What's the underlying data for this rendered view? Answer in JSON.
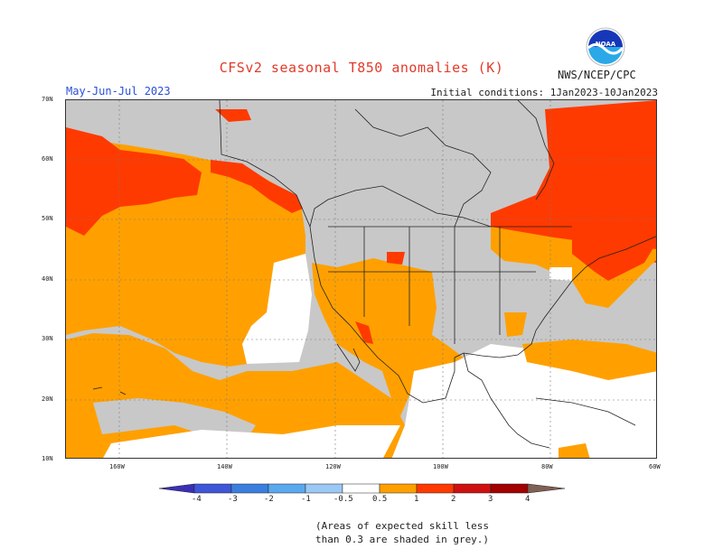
{
  "title": "CFSv2 seasonal T850 anomalies (K)",
  "season": "May-Jun-Jul 2023",
  "initial_conditions": "Initial conditions: 1Jan2023-10Jan2023",
  "agency": "NWS/NCEP/CPC",
  "logo_text": "NOAA",
  "lat_labels": [
    "70N",
    "60N",
    "50N",
    "40N",
    "30N",
    "20N",
    "10N"
  ],
  "lon_labels": [
    "160W",
    "140W",
    "120W",
    "100W",
    "80W",
    "60W"
  ],
  "colorbar": {
    "labels": [
      "-4",
      "-3",
      "-2",
      "-1",
      "-0.5",
      "0.5",
      "1",
      "2",
      "3",
      "4"
    ],
    "colors": [
      "#3b2fb8",
      "#3f56d8",
      "#3a7fe0",
      "#5aa8ef",
      "#9cc8f5",
      "#ffffff",
      "#ffa000",
      "#ff3a00",
      "#ce1010",
      "#a30000",
      "#c8a090",
      "#806055"
    ]
  },
  "note_line1": "(Areas of expected skill less",
  "note_line2": "than 0.3 are shaded in grey.)",
  "palette": {
    "grey": "#c8c8c8",
    "orange": "#ffa000",
    "red": "#ff3a00",
    "white": "#ffffff"
  }
}
